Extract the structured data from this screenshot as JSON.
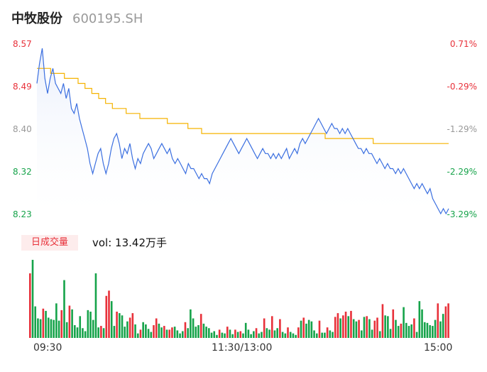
{
  "header": {
    "name": "中牧股份",
    "code": "600195.SH"
  },
  "colors": {
    "price_line": "#3b6fe0",
    "avg_line": "#f5b300",
    "up": "#e8313a",
    "down": "#16a34a",
    "flat": "#999999"
  },
  "volume_box": {
    "tag": "日成交量",
    "text": "vol: 13.42万手"
  },
  "chart_data": [
    {
      "type": "line",
      "xlabel": "",
      "ylabel": "",
      "ylim": [
        8.23,
        8.57
      ],
      "yticks": [
        "8.57",
        "8.49",
        "8.40",
        "8.32",
        "8.23"
      ],
      "yticks_right": [
        "0.71%",
        "-0.29%",
        "-1.29%",
        "-2.29%",
        "-3.29%"
      ],
      "xticks": [
        "09:30",
        "11:30/13:00",
        "15:00"
      ],
      "series": [
        {
          "values": [
            8.49,
            8.53,
            8.56,
            8.5,
            8.47,
            8.5,
            8.52,
            8.49,
            8.48,
            8.47,
            8.49,
            8.46,
            8.48,
            8.44,
            8.43,
            8.45,
            8.42,
            8.4,
            8.38,
            8.36,
            8.33,
            8.31,
            8.33,
            8.35,
            8.36,
            8.33,
            8.31,
            8.33,
            8.36,
            8.38,
            8.39,
            8.37,
            8.34,
            8.36,
            8.35,
            8.37,
            8.34,
            8.32,
            8.34,
            8.33,
            8.35,
            8.36,
            8.37,
            8.36,
            8.34,
            8.35,
            8.36,
            8.37,
            8.36,
            8.35,
            8.36,
            8.34,
            8.33,
            8.34,
            8.33,
            8.32,
            8.31,
            8.33,
            8.32,
            8.32,
            8.31,
            8.3,
            8.31,
            8.3,
            8.3,
            8.29,
            8.31,
            8.32,
            8.33,
            8.34,
            8.35,
            8.36,
            8.37,
            8.38,
            8.37,
            8.36,
            8.35,
            8.36,
            8.37,
            8.38,
            8.37,
            8.36,
            8.35,
            8.34,
            8.35,
            8.36,
            8.35,
            8.35,
            8.34,
            8.35,
            8.34,
            8.35,
            8.34,
            8.35,
            8.36,
            8.34,
            8.35,
            8.36,
            8.35,
            8.37,
            8.38,
            8.37,
            8.38,
            8.39,
            8.4,
            8.41,
            8.42,
            8.41,
            8.4,
            8.39,
            8.4,
            8.41,
            8.4,
            8.4,
            8.39,
            8.4,
            8.39,
            8.4,
            8.39,
            8.38,
            8.37,
            8.36,
            8.36,
            8.35,
            8.36,
            8.35,
            8.35,
            8.34,
            8.33,
            8.34,
            8.33,
            8.32,
            8.33,
            8.32,
            8.32,
            8.31,
            8.32,
            8.31,
            8.32,
            8.31,
            8.3,
            8.29,
            8.28,
            8.29,
            8.28,
            8.29,
            8.28,
            8.27,
            8.28,
            8.26,
            8.25,
            8.24,
            8.23,
            8.24,
            8.23,
            8.24
          ]
        },
        {
          "values": [
            8.52,
            8.52,
            8.51,
            8.51,
            8.5,
            8.5,
            8.49,
            8.48,
            8.47,
            8.46,
            8.45,
            8.44,
            8.44,
            8.43,
            8.43,
            8.42,
            8.42,
            8.42,
            8.42,
            8.41,
            8.41,
            8.41,
            8.4,
            8.4,
            8.39,
            8.39,
            8.39,
            8.39,
            8.39,
            8.39,
            8.39,
            8.39,
            8.39,
            8.39,
            8.39,
            8.39,
            8.39,
            8.39,
            8.39,
            8.39,
            8.39,
            8.39,
            8.38,
            8.38,
            8.38,
            8.38,
            8.38,
            8.38,
            8.38,
            8.37,
            8.37,
            8.37,
            8.37,
            8.37,
            8.37,
            8.37,
            8.37,
            8.37,
            8.37,
            8.37
          ]
        }
      ]
    },
    {
      "type": "bar",
      "title": "",
      "values": [
        8.6,
        10.4,
        4.2,
        2.6,
        2.5,
        3.9,
        3.6,
        2.7,
        2.5,
        2.4,
        4.6,
        2.3,
        3.7,
        7.7,
        2.1,
        4.3,
        3.8,
        1.7,
        1.4,
        2.9,
        1.3,
        0.9,
        3.7,
        3.5,
        2.4,
        8.6,
        1.4,
        1.6,
        1.3,
        5.6,
        6.3,
        4.9,
        1.6,
        3.5,
        3.3,
        3.0,
        1.5,
        2.2,
        2.7,
        3.3,
        1.8,
        0.6,
        1.1,
        2.1,
        1.8,
        1.2,
        0.8,
        1.7,
        2.6,
        1.9,
        1.4,
        1.6,
        1.1,
        1.1,
        1.4,
        1.5,
        1.0,
        0.6,
        0.9,
        2.1,
        1.3,
        3.8,
        2.6,
        1.5,
        1.7,
        3.2,
        1.9,
        1.5,
        1.3,
        0.7,
        0.9,
        0.4,
        1.1,
        0.7,
        0.6,
        1.5,
        1.1,
        0.5,
        1.1,
        0.8,
        0.9,
        0.6,
        2.0,
        1.1,
        0.5,
        0.9,
        1.3,
        0.6,
        0.8,
        2.6,
        1.3,
        1.1,
        2.9,
        1.0,
        1.3,
        2.5,
        0.8,
        0.6,
        1.4,
        0.8,
        0.6,
        0.4,
        1.4,
        2.3,
        2.7,
        1.9,
        2.4,
        2.2,
        1.0,
        0.6,
        2.3,
        0.7,
        0.7,
        1.4,
        1.0,
        0.8,
        2.8,
        3.3,
        2.6,
        3.0,
        3.5,
        2.9,
        3.6,
        2.5,
        2.2,
        2.4,
        1.0,
        2.8,
        2.9,
        2.5,
        1.1,
        2.3,
        2.7,
        0.9,
        4.5,
        3.0,
        2.9,
        1.2,
        3.8,
        2.4,
        1.6,
        1.9,
        4.1,
        2.0,
        1.6,
        1.8,
        2.6,
        0.8,
        4.9,
        3.8,
        2.1,
        2.0,
        1.7,
        1.6,
        2.4,
        4.6,
        2.2,
        3.2,
        4.2,
        4.6
      ]
    }
  ]
}
